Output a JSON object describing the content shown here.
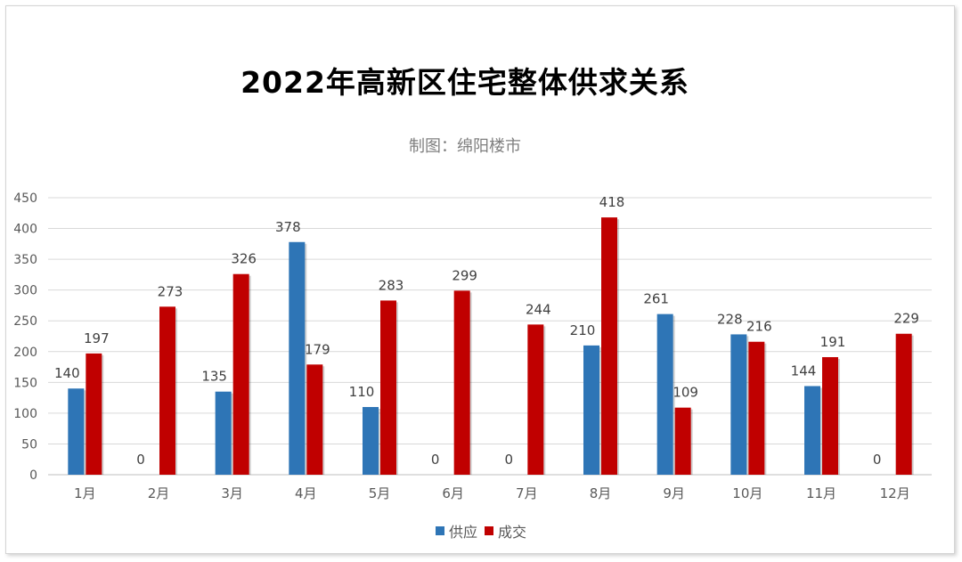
{
  "chart_data": {
    "type": "bar",
    "title": "2022年高新区住宅整体供求关系",
    "subtitle": "制图：绵阳楼市",
    "categories": [
      "1月",
      "2月",
      "3月",
      "4月",
      "5月",
      "6月",
      "7月",
      "8月",
      "9月",
      "10月",
      "11月",
      "12月"
    ],
    "series": [
      {
        "name": "供应",
        "color": "#2e75b6",
        "values": [
          140,
          0,
          135,
          378,
          110,
          0,
          0,
          210,
          261,
          228,
          144,
          0
        ]
      },
      {
        "name": "成交",
        "color": "#c00000",
        "values": [
          197,
          273,
          326,
          179,
          283,
          299,
          244,
          418,
          109,
          216,
          191,
          229
        ]
      }
    ],
    "ylim": [
      0,
      450
    ],
    "yticks": [
      0,
      50,
      100,
      150,
      200,
      250,
      300,
      350,
      400,
      450
    ],
    "grid": true,
    "legend_position": "bottom"
  }
}
